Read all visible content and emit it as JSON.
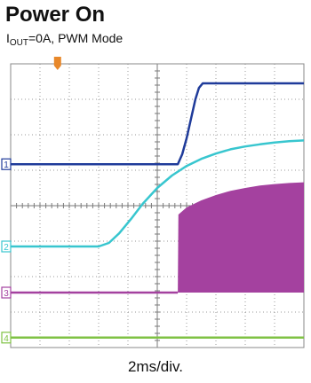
{
  "chart_data": {
    "type": "line",
    "title": "Power On",
    "subtitle": {
      "prefix": "I",
      "subscript": "OUT",
      "suffix": "=0A, PWM Mode"
    },
    "xlabel": "2ms/div.",
    "divisions": {
      "x": 10,
      "y": 8
    },
    "xlim": [
      0,
      10
    ],
    "ylim": [
      0,
      8
    ],
    "trigger_marker": {
      "x": 1.6,
      "color": "#e8882a"
    },
    "series": [
      {
        "name": "1",
        "color": "#1f3b9a",
        "ground_level": 5.17,
        "points": [
          [
            0,
            5.17
          ],
          [
            5.7,
            5.17
          ],
          [
            5.85,
            5.45
          ],
          [
            6.0,
            5.9
          ],
          [
            6.15,
            6.45
          ],
          [
            6.3,
            7.0
          ],
          [
            6.42,
            7.32
          ],
          [
            6.55,
            7.45
          ],
          [
            10,
            7.45
          ]
        ]
      },
      {
        "name": "2",
        "color": "#38c6cf",
        "ground_level": 2.85,
        "points": [
          [
            0,
            2.85
          ],
          [
            3.0,
            2.85
          ],
          [
            3.35,
            2.95
          ],
          [
            3.7,
            3.22
          ],
          [
            4.1,
            3.62
          ],
          [
            4.5,
            4.05
          ],
          [
            5.0,
            4.5
          ],
          [
            5.5,
            4.85
          ],
          [
            6.0,
            5.12
          ],
          [
            6.5,
            5.32
          ],
          [
            7.0,
            5.47
          ],
          [
            7.5,
            5.59
          ],
          [
            8.0,
            5.67
          ],
          [
            8.5,
            5.73
          ],
          [
            9.0,
            5.78
          ],
          [
            9.5,
            5.82
          ],
          [
            10,
            5.84
          ]
        ]
      },
      {
        "name": "3",
        "color": "#a4419f",
        "ground_level": 1.55,
        "style": "switching-envelope",
        "points": [
          [
            0,
            1.55
          ],
          [
            5.7,
            1.55
          ],
          [
            5.72,
            3.75
          ],
          [
            6.0,
            3.95
          ],
          [
            6.5,
            4.15
          ],
          [
            7.0,
            4.3
          ],
          [
            7.5,
            4.42
          ],
          [
            8.0,
            4.5
          ],
          [
            8.5,
            4.57
          ],
          [
            9.0,
            4.61
          ],
          [
            9.5,
            4.64
          ],
          [
            10,
            4.66
          ]
        ]
      },
      {
        "name": "4",
        "color": "#7fc244",
        "ground_level": 0.28,
        "points": [
          [
            0,
            0.28
          ],
          [
            10,
            0.28
          ]
        ]
      }
    ]
  }
}
